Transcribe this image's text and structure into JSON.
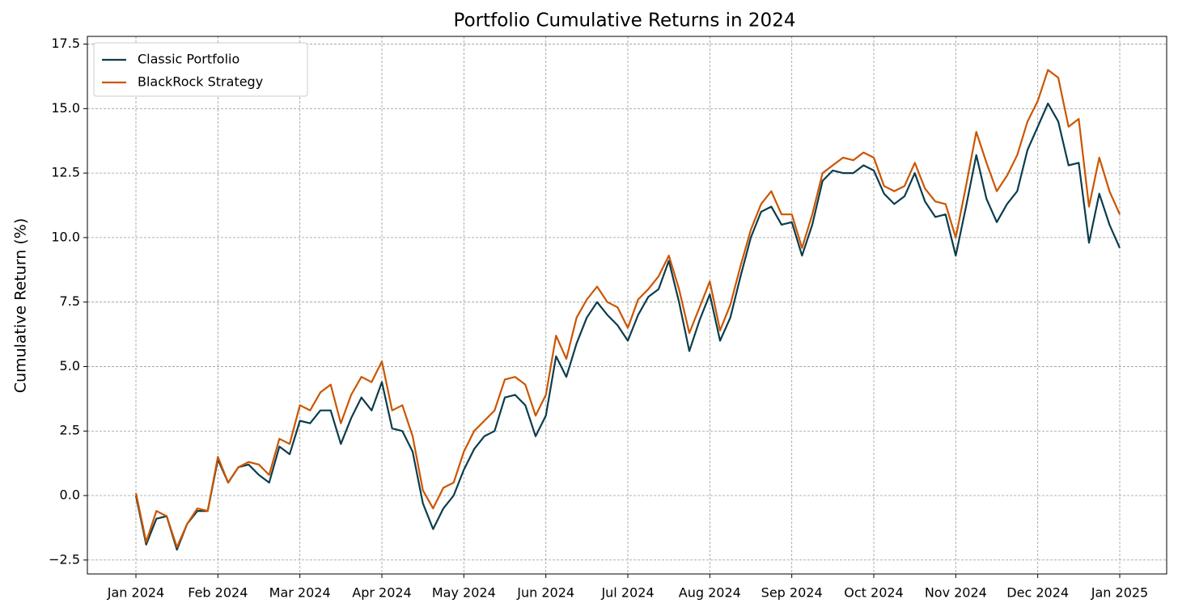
{
  "chart_data": {
    "type": "line",
    "title": "Portfolio Cumulative Returns in 2024",
    "y_label": "Cumulative Return (%)",
    "categories": [
      "Jan 2024",
      null,
      null,
      null,
      null,
      null,
      null,
      null,
      "Feb 2024",
      null,
      null,
      null,
      null,
      null,
      null,
      null,
      "Mar 2024",
      null,
      null,
      null,
      null,
      null,
      null,
      null,
      "Apr 2024",
      null,
      null,
      null,
      null,
      null,
      null,
      null,
      "May 2024",
      null,
      null,
      null,
      null,
      null,
      null,
      null,
      "Jun 2024",
      null,
      null,
      null,
      null,
      null,
      null,
      null,
      "Jul 2024",
      null,
      null,
      null,
      null,
      null,
      null,
      null,
      "Aug 2024",
      null,
      null,
      null,
      null,
      null,
      null,
      null,
      "Sep 2024",
      null,
      null,
      null,
      null,
      null,
      null,
      null,
      "Oct 2024",
      null,
      null,
      null,
      null,
      null,
      null,
      null,
      "Nov 2024",
      null,
      null,
      null,
      null,
      null,
      null,
      null,
      "Dec 2024",
      null,
      null,
      null,
      null,
      null,
      null,
      null,
      "Jan 2025"
    ],
    "series": [
      {
        "name": "Classic Portfolio",
        "color": "#0b3d4c",
        "values": [
          0.0,
          -1.9,
          -0.9,
          -0.8,
          -2.1,
          -1.1,
          -0.6,
          -0.6,
          1.4,
          0.5,
          1.1,
          1.2,
          0.8,
          0.5,
          1.9,
          1.6,
          2.9,
          2.8,
          3.3,
          3.3,
          2.0,
          3.0,
          3.8,
          3.3,
          4.4,
          2.6,
          2.5,
          1.7,
          -0.3,
          -1.3,
          -0.5,
          0.0,
          1.0,
          1.8,
          2.3,
          2.5,
          3.8,
          3.9,
          3.5,
          2.3,
          3.1,
          5.4,
          4.6,
          5.9,
          6.9,
          7.5,
          7.0,
          6.6,
          6.0,
          7.0,
          7.7,
          8.0,
          9.1,
          7.5,
          5.6,
          6.8,
          7.8,
          6.0,
          6.9,
          8.5,
          10.0,
          11.0,
          11.2,
          10.5,
          10.6,
          9.3,
          10.5,
          12.2,
          12.6,
          12.5,
          12.5,
          12.8,
          12.6,
          11.7,
          11.3,
          11.6,
          12.5,
          11.4,
          10.8,
          10.9,
          9.3,
          11.2,
          13.2,
          11.5,
          10.6,
          11.3,
          11.8,
          13.4,
          14.3,
          15.2,
          14.5,
          12.8,
          12.9,
          9.8,
          11.7,
          10.5,
          9.6
        ]
      },
      {
        "name": "BlackRock Strategy",
        "color": "#cc5500",
        "values": [
          0.1,
          -1.8,
          -0.6,
          -0.8,
          -2.0,
          -1.1,
          -0.5,
          -0.6,
          1.5,
          0.5,
          1.1,
          1.3,
          1.2,
          0.8,
          2.2,
          2.0,
          3.5,
          3.3,
          4.0,
          4.3,
          2.8,
          3.9,
          4.6,
          4.4,
          5.2,
          3.3,
          3.5,
          2.3,
          0.2,
          -0.5,
          0.3,
          0.5,
          1.7,
          2.5,
          2.9,
          3.3,
          4.5,
          4.6,
          4.3,
          3.1,
          3.9,
          6.2,
          5.3,
          6.9,
          7.6,
          8.1,
          7.5,
          7.3,
          6.5,
          7.6,
          8.0,
          8.5,
          9.3,
          8.0,
          6.3,
          7.3,
          8.3,
          6.4,
          7.4,
          8.9,
          10.3,
          11.3,
          11.8,
          10.9,
          10.9,
          9.6,
          10.9,
          12.5,
          12.8,
          13.1,
          13.0,
          13.3,
          13.1,
          12.0,
          11.8,
          12.0,
          12.9,
          11.9,
          11.4,
          11.3,
          10.0,
          12.0,
          14.1,
          12.9,
          11.8,
          12.4,
          13.2,
          14.5,
          15.3,
          16.5,
          16.2,
          14.3,
          14.6,
          11.2,
          13.1,
          11.8,
          10.9
        ]
      }
    ],
    "ylim": [
      -3.04,
      17.8
    ],
    "yticks": [
      {
        "value": -2.5,
        "label": "−2.5"
      },
      {
        "value": 0,
        "label": "0.0"
      },
      2.5,
      {
        "value": 5,
        "label": "5.0"
      },
      7.5,
      {
        "value": 10,
        "label": "10.0"
      },
      12.5,
      {
        "value": 15,
        "label": "15.0"
      },
      17.5
    ],
    "grid": true,
    "legend": "upper left"
  }
}
